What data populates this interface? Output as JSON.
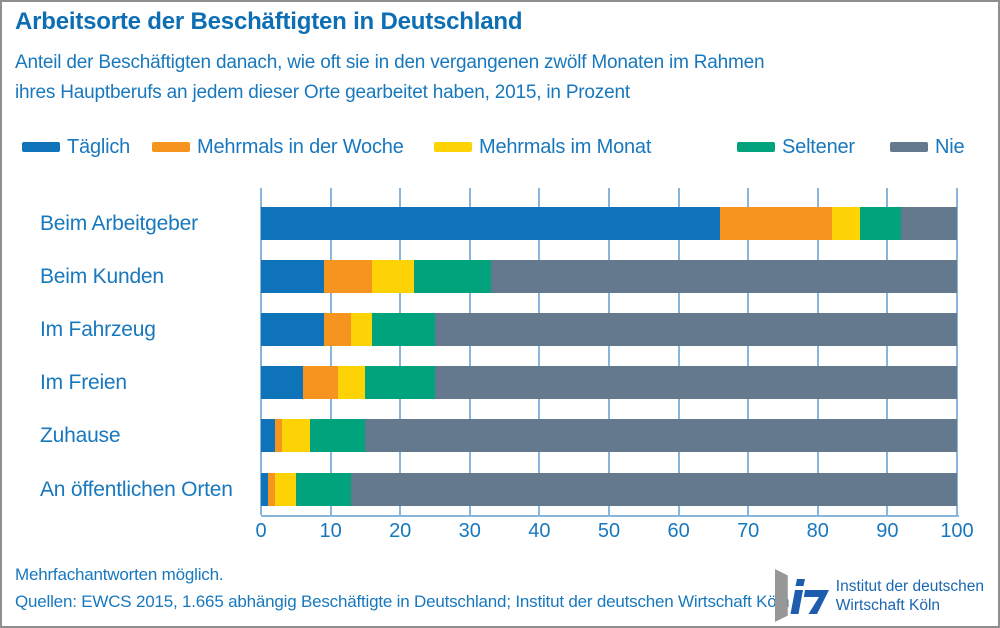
{
  "header": {
    "title": "Arbeitsorte der Beschäftigten in Deutschland",
    "subtitle_line1": "Anteil der Beschäftigten danach, wie oft sie in den vergangenen zwölf Monaten im Rahmen",
    "subtitle_line2": "ihres Hauptberufs an jedem dieser Orte gearbeitet haben, 2015, in Prozent"
  },
  "colors": {
    "taeglich": "#0e73b9",
    "woche": "#f5941f",
    "monat": "#fdd306",
    "seltener": "#00a37c",
    "nie": "#64798e",
    "text_blue": "#1878bd",
    "title_blue": "#0d6eb3",
    "gridline": "#8ab5da"
  },
  "legend": {
    "items": [
      {
        "label": "Täglich",
        "color": "#0e73b9"
      },
      {
        "label": "Mehrmals in der Woche",
        "color": "#f5941f"
      },
      {
        "label": "Mehrmals im Monat",
        "color": "#fdd306"
      },
      {
        "label": "Seltener",
        "color": "#00a37c"
      },
      {
        "label": "Nie",
        "color": "#64798e"
      }
    ]
  },
  "chart_data": {
    "type": "bar",
    "orientation": "horizontal",
    "stacked": true,
    "title": "Arbeitsorte der Beschäftigten in Deutschland",
    "xlabel": "",
    "ylabel": "",
    "unit": "Prozent",
    "xlim": [
      0,
      100
    ],
    "xticks": [
      0,
      10,
      20,
      30,
      40,
      50,
      60,
      70,
      80,
      90,
      100
    ],
    "grid": true,
    "legend_position": "top",
    "categories": [
      "Beim Arbeitgeber",
      "Beim Kunden",
      "Im Fahrzeug",
      "Im Freien",
      "Zuhause",
      "An öffentlichen Orten"
    ],
    "series": [
      {
        "name": "Täglich",
        "color": "#0e73b9",
        "values": [
          66,
          9,
          9,
          6,
          2,
          1
        ]
      },
      {
        "name": "Mehrmals in der Woche",
        "color": "#f5941f",
        "values": [
          16,
          7,
          4,
          5,
          1,
          1
        ]
      },
      {
        "name": "Mehrmals im Monat",
        "color": "#fdd306",
        "values": [
          4,
          6,
          3,
          4,
          4,
          3
        ]
      },
      {
        "name": "Seltener",
        "color": "#00a37c",
        "values": [
          6,
          11,
          9,
          10,
          8,
          8
        ]
      },
      {
        "name": "Nie",
        "color": "#64798e",
        "values": [
          8,
          67,
          75,
          75,
          85,
          87
        ]
      }
    ]
  },
  "footer": {
    "note": "Mehrfachantworten möglich.",
    "source": "Quellen: EWCS 2015, 1.665 abhängig Beschäftigte in Deutschland; Institut der deutschen Wirtschaft Köln"
  },
  "logo": {
    "text_line1": "Institut der deutschen",
    "text_line2": "Wirtschaft Köln"
  }
}
